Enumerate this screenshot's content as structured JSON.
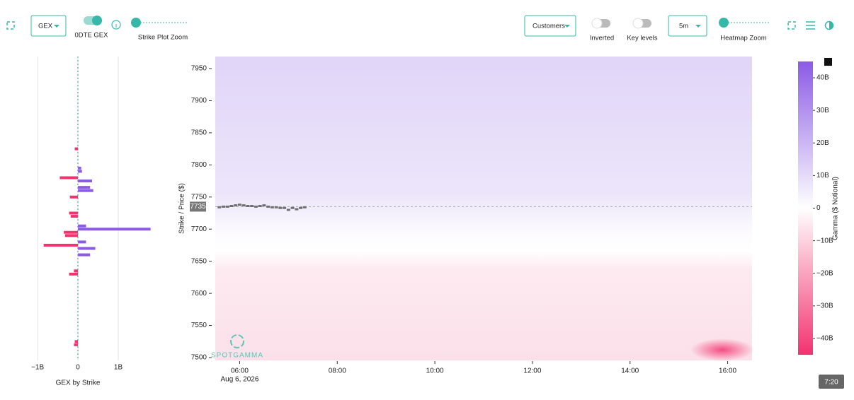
{
  "toolbar": {
    "metric": "GEX",
    "toggle_label": "0DTE GEX",
    "strike_zoom_label": "Strike Plot Zoom",
    "party": "Customers",
    "inverted_label": "Inverted",
    "key_levels_label": "Key levels",
    "interval": "5m",
    "heatmap_zoom_label": "Heatmap Zoom"
  },
  "time_badge": "7:20",
  "chart_data": [
    {
      "type": "bar",
      "orientation": "horizontal",
      "x_label": "GEX by Strike",
      "y": [
        7520,
        7525,
        7630,
        7635,
        7660,
        7670,
        7675,
        7680,
        7690,
        7695,
        7700,
        7705,
        7720,
        7725,
        7750,
        7760,
        7765,
        7775,
        7780,
        7790,
        7795,
        7825
      ],
      "values": [
        -0.1,
        -0.08,
        -0.22,
        -0.1,
        0.3,
        0.43,
        -0.85,
        0.2,
        -0.32,
        -0.35,
        1.8,
        0.2,
        -0.18,
        -0.22,
        -0.2,
        0.38,
        0.3,
        0.35,
        -0.45,
        0.1,
        0.08,
        -0.08
      ],
      "positive_color": "#8b5be6",
      "negative_color": "#f2336f",
      "xlim": [
        -1.23,
        2.07
      ],
      "xticks": [
        {
          "value": -1,
          "label": "−1B"
        },
        0,
        {
          "value": 1,
          "label": "1B"
        }
      ],
      "ylim": [
        7495.6,
        7968.7
      ],
      "grid": true
    },
    {
      "type": "heatmap",
      "y_label": "Strike / Price ($)",
      "date_label": "Aug 6, 2026",
      "watermark": "SPOTGAMMA",
      "xlim": [
        330,
        990
      ],
      "xticks": [
        {
          "value": 360,
          "label": "06:00"
        },
        {
          "value": 480,
          "label": "08:00"
        },
        {
          "value": 600,
          "label": "10:00"
        },
        {
          "value": 720,
          "label": "12:00"
        },
        {
          "value": 840,
          "label": "14:00"
        },
        {
          "value": 960,
          "label": "16:00"
        }
      ],
      "ylim": [
        7495.6,
        7968.7
      ],
      "yticks": [
        7500,
        7550,
        7600,
        7650,
        7700,
        7750,
        7800,
        7850,
        7900,
        7950
      ],
      "price": {
        "color": "#707070",
        "x": [
          335,
          340,
          345,
          350,
          355,
          360,
          365,
          370,
          375,
          380,
          385,
          390,
          395,
          400,
          405,
          410,
          415,
          420,
          425,
          430,
          435,
          440
        ],
        "values": [
          7734,
          7735,
          7735,
          7736,
          7737,
          7738,
          7737,
          7736,
          7736,
          7735,
          7736,
          7737,
          7735,
          7734,
          7734,
          7733,
          7733,
          7730,
          7733,
          7731,
          7733,
          7734
        ]
      },
      "current_price": 7735,
      "colorbar": {
        "label": "Gamma ($ Notional)",
        "lim": [
          -45,
          45
        ],
        "ticks": [
          {
            "value": 40,
            "label": "40B"
          },
          {
            "value": 30,
            "label": "30B"
          },
          {
            "value": 20,
            "label": "20B"
          },
          {
            "value": 10,
            "label": "10B"
          },
          0,
          {
            "value": -10,
            "label": "−10B"
          },
          {
            "value": -20,
            "label": "−20B"
          },
          {
            "value": -30,
            "label": "−30B"
          },
          {
            "value": -40,
            "label": "−40B"
          }
        ]
      }
    }
  ]
}
